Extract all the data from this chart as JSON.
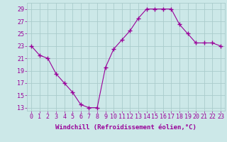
{
  "x": [
    0,
    1,
    2,
    3,
    4,
    5,
    6,
    7,
    8,
    9,
    10,
    11,
    12,
    13,
    14,
    15,
    16,
    17,
    18,
    19,
    20,
    21,
    22,
    23
  ],
  "y": [
    23,
    21.5,
    21,
    18.5,
    17,
    15.5,
    13.5,
    13,
    13,
    19.5,
    22.5,
    24,
    25.5,
    27.5,
    29,
    29,
    29,
    29,
    26.5,
    25,
    23.5,
    23.5,
    23.5,
    23
  ],
  "line_color": "#990099",
  "marker": "+",
  "xlabel": "Windchill (Refroidissement éolien,°C)",
  "ylabel_ticks": [
    13,
    15,
    17,
    19,
    21,
    23,
    25,
    27,
    29
  ],
  "xlim": [
    -0.5,
    23.5
  ],
  "ylim": [
    12.5,
    30
  ],
  "background_color": "#cce8e8",
  "grid_color": "#aacccc",
  "xlabel_color": "#990099",
  "tick_color": "#990099",
  "xlabel_fontsize": 6.5,
  "tick_fontsize": 6.0
}
